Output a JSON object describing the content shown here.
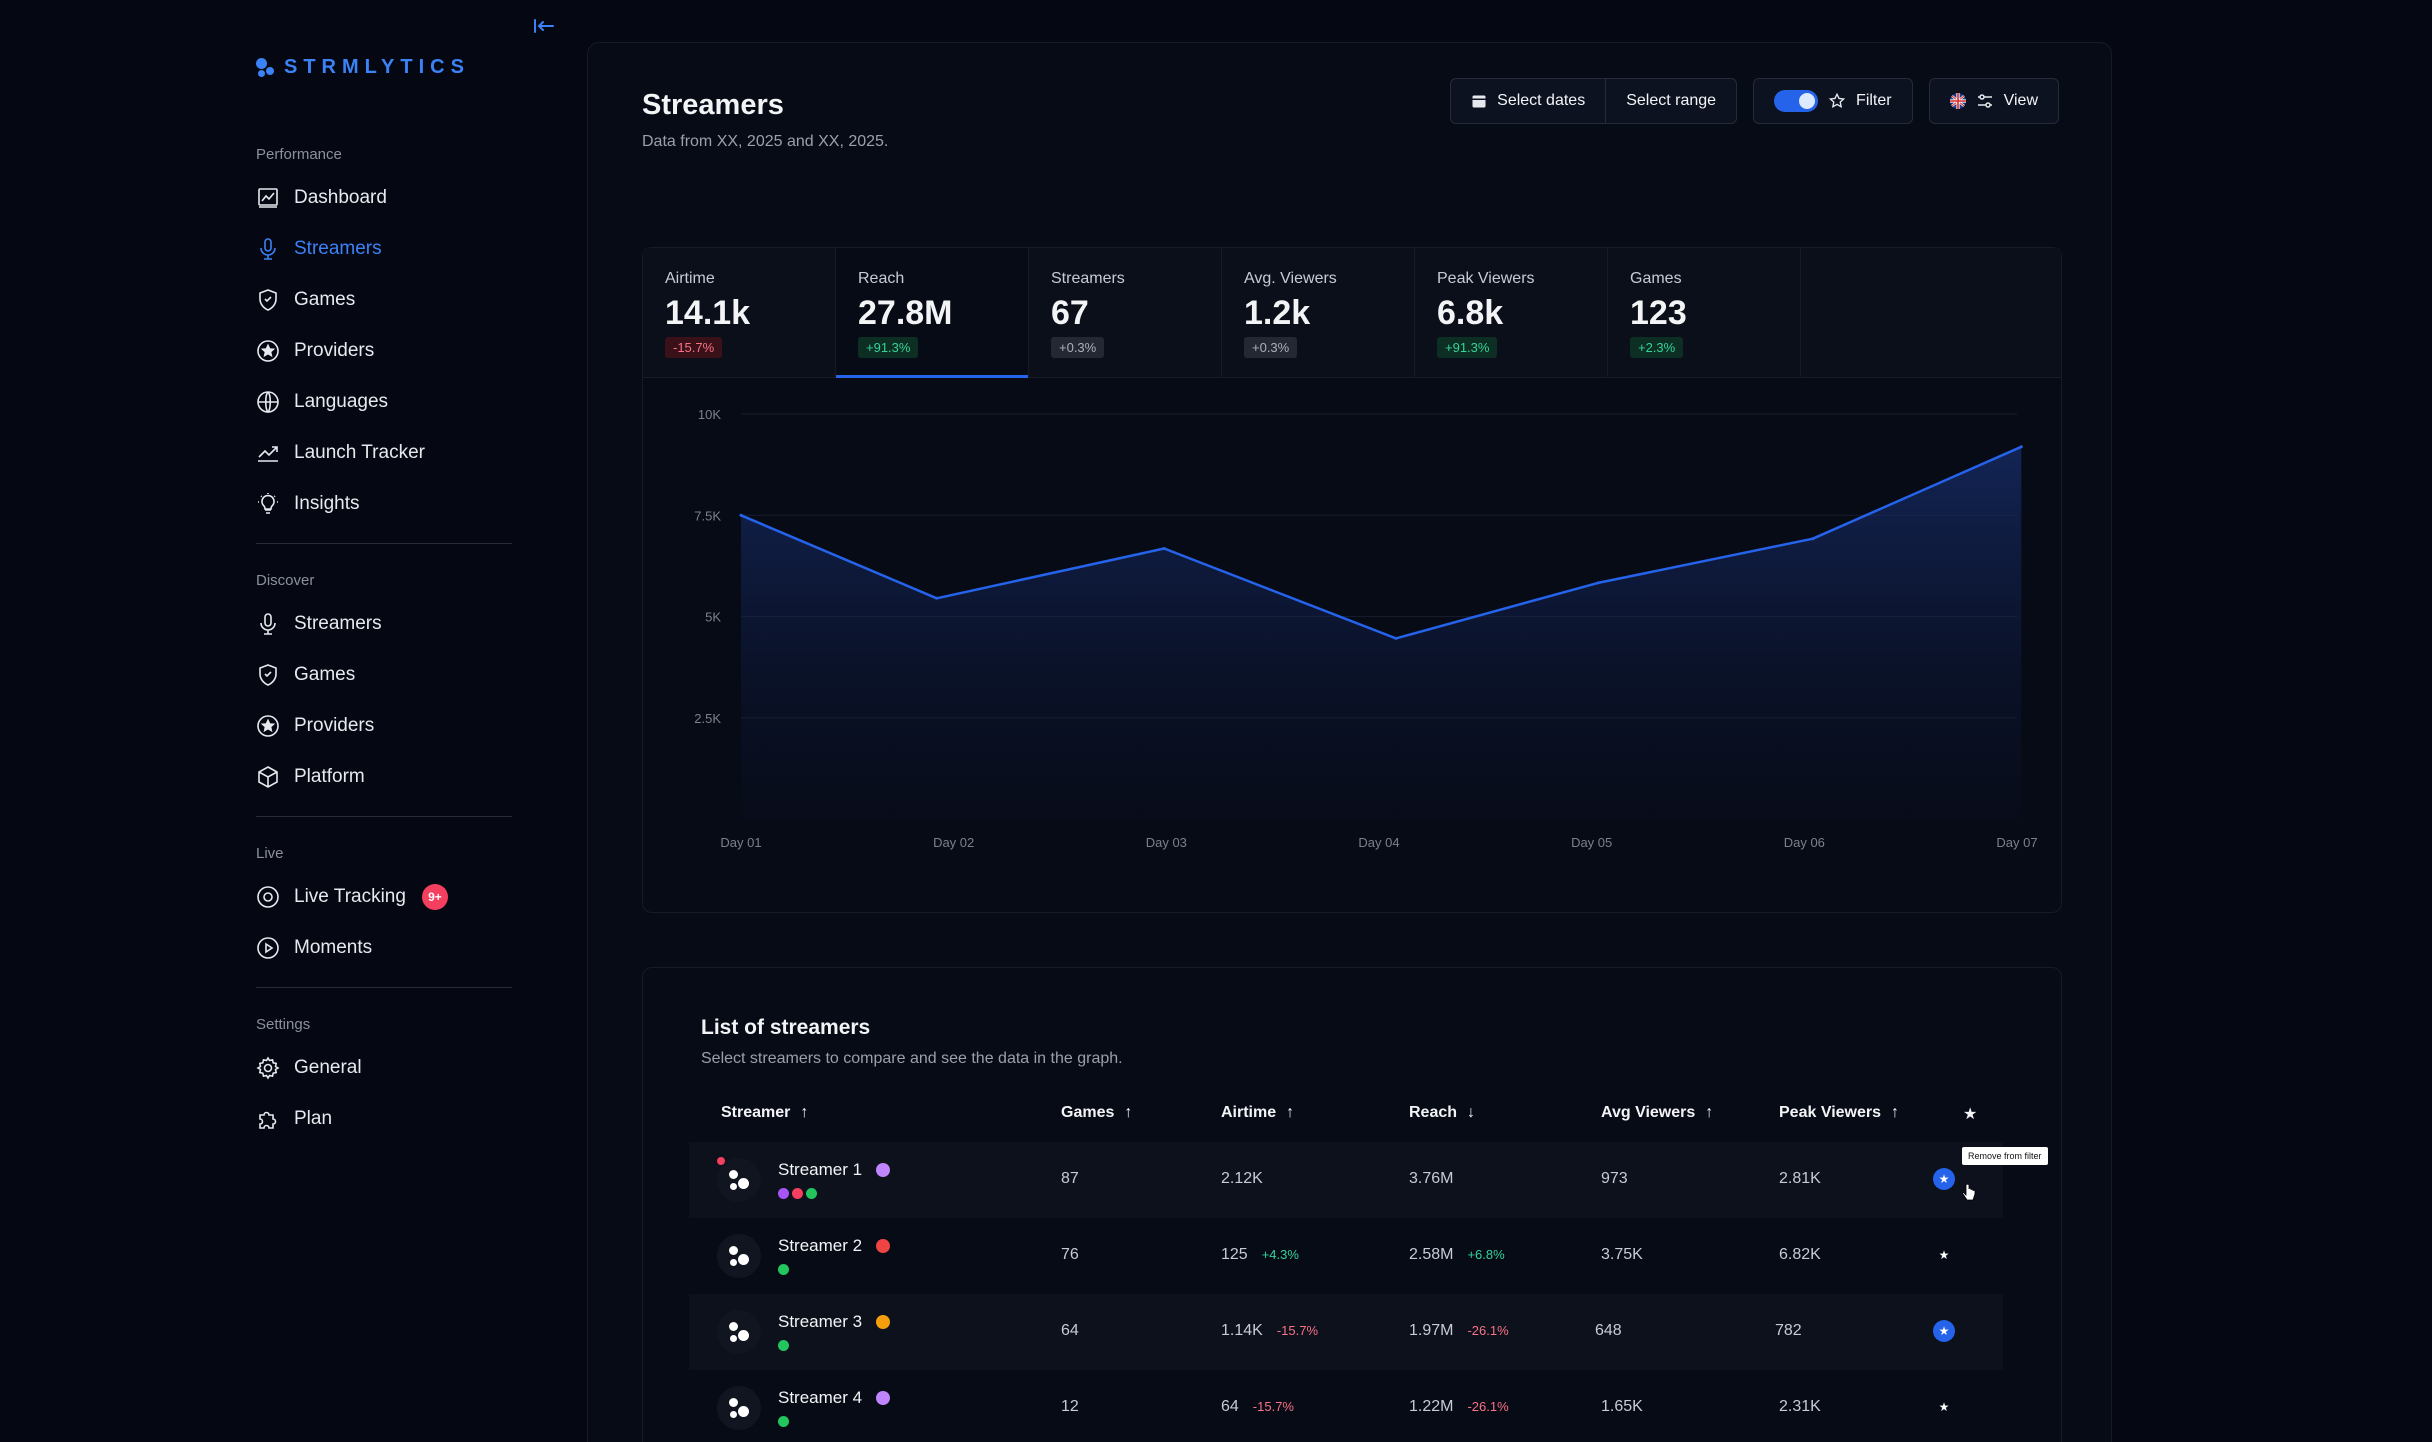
{
  "brand": {
    "name": "STRMLYTICS",
    "accent": "#3b82f6"
  },
  "sidebar": {
    "performance": {
      "heading": "Performance",
      "items": [
        {
          "label": "Dashboard",
          "icon": "chart-board-icon"
        },
        {
          "label": "Streamers",
          "icon": "microphone-icon",
          "active": true
        },
        {
          "label": "Games",
          "icon": "shield-icon"
        },
        {
          "label": "Providers",
          "icon": "star-circle-icon"
        },
        {
          "label": "Languages",
          "icon": "globe-icon"
        },
        {
          "label": "Launch Tracker",
          "icon": "trend-icon"
        },
        {
          "label": "Insights",
          "icon": "lightbulb-icon"
        }
      ]
    },
    "discover": {
      "heading": "Discover",
      "items": [
        {
          "label": "Streamers",
          "icon": "microphone-icon"
        },
        {
          "label": "Games",
          "icon": "shield-icon"
        },
        {
          "label": "Providers",
          "icon": "star-circle-icon"
        },
        {
          "label": "Platform",
          "icon": "cube-icon"
        }
      ]
    },
    "live": {
      "heading": "Live",
      "items": [
        {
          "label": "Live Tracking",
          "icon": "target-icon",
          "badge": "9+"
        },
        {
          "label": "Moments",
          "icon": "play-circle-icon"
        }
      ]
    },
    "settings": {
      "heading": "Settings",
      "items": [
        {
          "label": "General",
          "icon": "gear-icon"
        },
        {
          "label": "Plan",
          "icon": "puzzle-icon"
        }
      ]
    }
  },
  "header": {
    "title": "Streamers",
    "subtitle": "Data from XX, 2025 and XX, 2025.",
    "select_dates": "Select dates",
    "select_range": "Select range",
    "filter": "Filter",
    "view": "View"
  },
  "stats": [
    {
      "label": "Airtime",
      "value": "14.1k",
      "delta": "-15.7%",
      "trend": "neg"
    },
    {
      "label": "Reach",
      "value": "27.8M",
      "delta": "+91.3%",
      "trend": "pos",
      "active": true
    },
    {
      "label": "Streamers",
      "value": "67",
      "delta": "+0.3%",
      "trend": "neu"
    },
    {
      "label": "Avg. Viewers",
      "value": "1.2k",
      "delta": "+0.3%",
      "trend": "neu"
    },
    {
      "label": "Peak Viewers",
      "value": "6.8k",
      "delta": "+91.3%",
      "trend": "pos"
    },
    {
      "label": "Games",
      "value": "123",
      "delta": "+2.3%",
      "trend": "pos"
    }
  ],
  "chart_data": {
    "type": "area",
    "title": "",
    "xlabel": "",
    "ylabel": "",
    "categories": [
      "Day 01",
      "Day 02",
      "Day 03",
      "Day 04",
      "Day 05",
      "Day 06",
      "Day 07"
    ],
    "x": [
      0,
      0.92,
      1.99,
      3.08,
      4.03,
      5.04,
      6.02
    ],
    "values": [
      7500,
      5450,
      6680,
      4460,
      5830,
      6920,
      9190
    ],
    "ylim": [
      0,
      10000
    ],
    "yticks": [
      2500,
      5000,
      7500,
      10000
    ],
    "ytick_labels": [
      "2.5K",
      "5K",
      "7.5K",
      "10K"
    ],
    "grid": true,
    "color": "#2563eb"
  },
  "list": {
    "title": "List of streamers",
    "subtitle": "Select streamers to compare and see the data in the graph.",
    "columns": [
      {
        "label": "Streamer",
        "sort": "↑"
      },
      {
        "label": "Games",
        "sort": "↑"
      },
      {
        "label": "Airtime",
        "sort": "↑"
      },
      {
        "label": "Reach",
        "sort": "↓"
      },
      {
        "label": "Avg Viewers",
        "sort": "↑"
      },
      {
        "label": "Peak Viewers",
        "sort": "↑"
      },
      {
        "label": "★",
        "sort": ""
      }
    ],
    "rows": [
      {
        "name": "Streamer 1",
        "flag": "#c084fc",
        "live": true,
        "platforms": [
          "#a855f7",
          "#f43f5e",
          "#22c55e"
        ],
        "games": "87",
        "airtime": "2.12K",
        "airtime_chg": "",
        "airtime_trend": "",
        "reach": "3.76M",
        "reach_chg": "",
        "reach_trend": "",
        "avg": "973",
        "peak": "2.81K",
        "fav": true
      },
      {
        "name": "Streamer 2",
        "flag": "#ef4444",
        "live": false,
        "platforms": [
          "#22c55e"
        ],
        "games": "76",
        "airtime": "125",
        "airtime_chg": "+4.3%",
        "airtime_trend": "pos",
        "reach": "2.58M",
        "reach_chg": "+6.8%",
        "reach_trend": "pos",
        "avg": "3.75K",
        "peak": "6.82K",
        "fav": false
      },
      {
        "name": "Streamer 3",
        "flag": "#f59e0b",
        "live": false,
        "platforms": [
          "#22c55e"
        ],
        "games": "64",
        "airtime": "1.14K",
        "airtime_chg": "-15.7%",
        "airtime_trend": "neg",
        "reach": "1.97M",
        "reach_chg": "-26.1%",
        "reach_trend": "neg",
        "avg": "648",
        "peak": "782",
        "fav": true
      },
      {
        "name": "Streamer 4",
        "flag": "#c084fc",
        "live": false,
        "platforms": [
          "#22c55e"
        ],
        "games": "12",
        "airtime": "64",
        "airtime_chg": "-15.7%",
        "airtime_trend": "neg",
        "reach": "1.22M",
        "reach_chg": "-26.1%",
        "reach_trend": "neg",
        "avg": "1.65K",
        "peak": "2.31K",
        "fav": false
      }
    ],
    "tooltip": "Remove from filter"
  }
}
